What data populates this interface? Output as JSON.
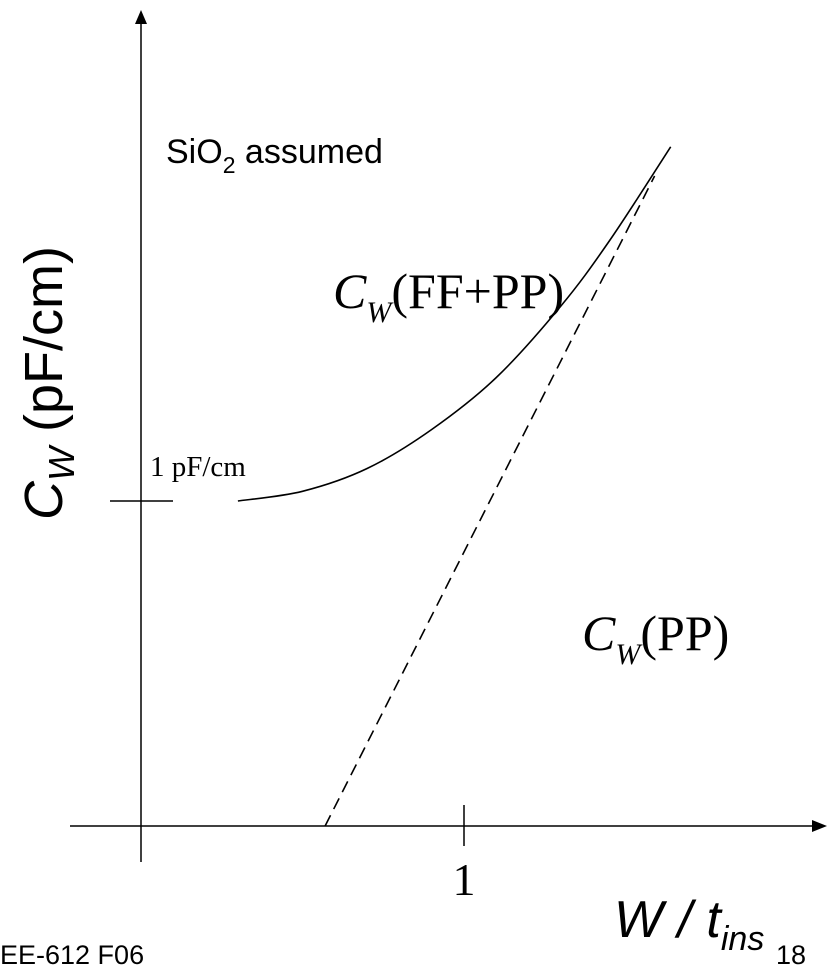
{
  "chart_data": {
    "type": "line",
    "title": "",
    "ylabel": {
      "main": "C",
      "sub": "W",
      "rest": " (pF/cm)"
    },
    "xlabel": {
      "main": "W / t",
      "sub": "ins"
    },
    "xticks": [
      {
        "value": 1,
        "label": "1"
      }
    ],
    "yticks": [
      {
        "value": 1,
        "label": "1 pF/cm"
      }
    ],
    "xlim": [
      -0.4,
      1.8
    ],
    "ylim": [
      0,
      2.4
    ],
    "annotations": {
      "note": {
        "main": "SiO",
        "sub": "2",
        "rest": " assumed"
      }
    },
    "series": [
      {
        "label": {
          "main": "C",
          "sub": "W",
          "rest": "(FF+PP)"
        },
        "style": "solid",
        "x": [
          0.3,
          0.5,
          0.7,
          0.9,
          1.1,
          1.3,
          1.45,
          1.64
        ],
        "y": [
          1.0,
          1.03,
          1.1,
          1.22,
          1.38,
          1.6,
          1.8,
          2.09
        ]
      },
      {
        "label": {
          "main": "C",
          "sub": "W",
          "rest": "(PP)"
        },
        "style": "dashed",
        "x": [
          0.57,
          1.59
        ],
        "y": [
          0.0,
          2.0
        ]
      }
    ]
  },
  "footer": {
    "course": "EE-612 F06",
    "page": "18"
  }
}
